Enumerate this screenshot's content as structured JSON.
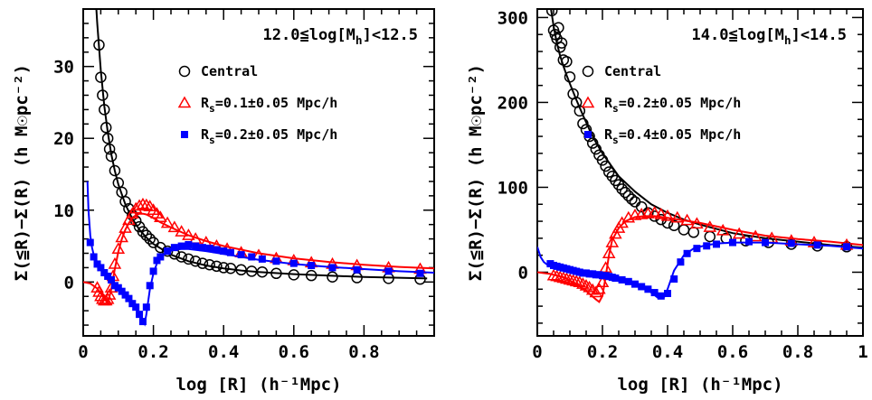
{
  "chart_data": [
    {
      "type": "scatter",
      "title": "12.0≦log[M_h]<12.5",
      "title_parts": {
        "pre": "12.0≦log[M",
        "sub": "h",
        "post": "]<12.5"
      },
      "xlabel": "log [R] (h⁻¹Mpc)",
      "ylabel": "Σ(≦R)−Σ(R) (h M☉pc⁻²)",
      "xlim": [
        0,
        1.0
      ],
      "ylim": [
        -7.5,
        38
      ],
      "xticks": [
        0,
        0.2,
        0.4,
        0.6,
        0.8
      ],
      "yticks": [
        0,
        10,
        20,
        30
      ],
      "legend_position": "top-right",
      "series": [
        {
          "name": "Central",
          "legend": {
            "pre": "Central",
            "sub": "",
            "post": ""
          },
          "marker": "circle",
          "color": "#000000",
          "points": {
            "x": [
              0.045,
              0.05,
              0.055,
              0.06,
              0.065,
              0.07,
              0.075,
              0.08,
              0.09,
              0.1,
              0.11,
              0.12,
              0.13,
              0.14,
              0.15,
              0.16,
              0.17,
              0.18,
              0.19,
              0.2,
              0.22,
              0.24,
              0.26,
              0.28,
              0.3,
              0.32,
              0.34,
              0.36,
              0.38,
              0.4,
              0.42,
              0.45,
              0.48,
              0.51,
              0.55,
              0.6,
              0.65,
              0.71,
              0.78,
              0.87,
              0.96
            ],
            "y": [
              33.0,
              28.5,
              26.0,
              24.0,
              21.5,
              20.0,
              18.5,
              17.5,
              15.5,
              13.8,
              12.5,
              11.2,
              10.2,
              9.3,
              8.5,
              7.7,
              7.0,
              6.5,
              6.0,
              5.5,
              4.8,
              4.3,
              3.9,
              3.5,
              3.2,
              2.9,
              2.6,
              2.4,
              2.2,
              2.0,
              1.9,
              1.7,
              1.5,
              1.4,
              1.2,
              1.0,
              0.9,
              0.7,
              0.6,
              0.5,
              0.4
            ]
          },
          "curve": {
            "x": [
              0.03,
              0.04,
              0.05,
              0.06,
              0.07,
              0.08,
              0.09,
              0.1,
              0.12,
              0.14,
              0.16,
              0.18,
              0.2,
              0.25,
              0.3,
              0.35,
              0.4,
              0.45,
              0.5,
              0.6,
              0.7,
              0.8,
              0.9,
              0.98
            ],
            "y": [
              44.0,
              36.0,
              29.5,
              24.5,
              20.8,
              17.8,
              15.5,
              13.6,
              10.8,
              8.8,
              7.3,
              6.2,
              5.3,
              3.8,
              2.9,
              2.3,
              1.9,
              1.6,
              1.4,
              1.1,
              0.9,
              0.7,
              0.6,
              0.5
            ]
          }
        },
        {
          "name": "R_s=0.1±0.05 Mpc/h",
          "legend": {
            "pre": "R",
            "sub": "s",
            "post": "=0.1±0.05 Mpc/h"
          },
          "marker": "triangle",
          "color": "#ff0000",
          "points": {
            "x": [
              0.04,
              0.045,
              0.05,
              0.055,
              0.06,
              0.065,
              0.07,
              0.075,
              0.08,
              0.085,
              0.09,
              0.1,
              0.11,
              0.12,
              0.13,
              0.14,
              0.15,
              0.16,
              0.17,
              0.18,
              0.19,
              0.2,
              0.21,
              0.22,
              0.24,
              0.26,
              0.28,
              0.3,
              0.32,
              0.35,
              0.38,
              0.41,
              0.45,
              0.5,
              0.55,
              0.6,
              0.65,
              0.71,
              0.78,
              0.87,
              0.96
            ],
            "y": [
              -0.8,
              -1.4,
              -2.0,
              -2.4,
              -2.6,
              -2.6,
              -2.4,
              -1.8,
              -0.8,
              0.8,
              2.5,
              4.6,
              6.2,
              7.5,
              8.6,
              9.5,
              10.2,
              10.6,
              10.8,
              10.7,
              10.5,
              10.0,
              9.5,
              9.0,
              8.2,
              7.6,
              7.0,
              6.5,
              6.0,
              5.5,
              5.0,
              4.6,
              4.1,
              3.7,
              3.3,
              3.0,
              2.7,
              2.5,
              2.3,
              2.0,
              1.8
            ]
          },
          "curve": {
            "x": [
              0.0,
              0.02,
              0.04,
              0.06,
              0.07,
              0.08,
              0.09,
              0.1,
              0.11,
              0.12,
              0.13,
              0.14,
              0.15,
              0.16,
              0.17,
              0.18,
              0.2,
              0.22,
              0.25,
              0.3,
              0.35,
              0.4,
              0.5,
              0.6,
              0.7,
              0.8,
              0.9,
              1.0
            ],
            "y": [
              0.0,
              -0.2,
              -0.9,
              -2.3,
              -3.0,
              -1.0,
              1.8,
              4.2,
              6.0,
              7.3,
              8.2,
              8.9,
              9.3,
              9.5,
              9.5,
              9.4,
              8.9,
              8.3,
              7.6,
              6.5,
              5.7,
              5.0,
              4.0,
              3.3,
              2.8,
              2.4,
              2.1,
              1.9
            ]
          }
        },
        {
          "name": "R_s=0.2±0.05 Mpc/h",
          "legend": {
            "pre": "R",
            "sub": "s",
            "post": "=0.2±0.05 Mpc/h"
          },
          "marker": "square",
          "color": "#0000ff",
          "points": {
            "x": [
              0.02,
              0.03,
              0.04,
              0.05,
              0.06,
              0.07,
              0.08,
              0.09,
              0.1,
              0.11,
              0.12,
              0.13,
              0.14,
              0.15,
              0.16,
              0.17,
              0.18,
              0.19,
              0.2,
              0.21,
              0.22,
              0.24,
              0.26,
              0.28,
              0.3,
              0.32,
              0.34,
              0.36,
              0.38,
              0.4,
              0.42,
              0.45,
              0.48,
              0.51,
              0.55,
              0.6,
              0.65,
              0.71,
              0.78,
              0.87,
              0.96
            ],
            "y": [
              5.5,
              3.5,
              2.5,
              2.0,
              1.3,
              0.8,
              0.3,
              -0.5,
              -0.8,
              -1.3,
              -1.8,
              -2.3,
              -3.0,
              -3.5,
              -4.5,
              -5.5,
              -3.5,
              -0.5,
              1.5,
              3.0,
              3.5,
              4.3,
              4.8,
              5.0,
              5.2,
              5.0,
              4.8,
              4.7,
              4.5,
              4.3,
              4.1,
              3.8,
              3.5,
              3.2,
              2.9,
              2.6,
              2.3,
              2.0,
              1.7,
              1.5,
              1.2
            ]
          },
          "curve": {
            "x": [
              0.012,
              0.015,
              0.02,
              0.025,
              0.03,
              0.04,
              0.05,
              0.06,
              0.08,
              0.1,
              0.12,
              0.14,
              0.15,
              0.16,
              0.17,
              0.175,
              0.18,
              0.19,
              0.2,
              0.21,
              0.22,
              0.24,
              0.26,
              0.28,
              0.3,
              0.35,
              0.4,
              0.5,
              0.6,
              0.7,
              0.8,
              0.9,
              1.0
            ],
            "y": [
              14.0,
              10.0,
              6.5,
              4.8,
              3.8,
              2.6,
              1.8,
              1.2,
              0.2,
              -0.8,
              -1.8,
              -2.9,
              -3.6,
              -4.4,
              -5.3,
              -5.8,
              -4.5,
              -1.0,
              1.2,
              2.6,
              3.4,
              4.2,
              4.5,
              4.6,
              4.6,
              4.3,
              3.9,
              3.1,
              2.5,
              2.1,
              1.8,
              1.5,
              1.3
            ]
          }
        }
      ]
    },
    {
      "type": "scatter",
      "title": "14.0≦log[M_h]<14.5",
      "title_parts": {
        "pre": "14.0≦log[M",
        "sub": "h",
        "post": "]<14.5"
      },
      "xlabel": "log [R] (h⁻¹Mpc)",
      "ylabel": "Σ(≦R)−Σ(R) (h M☉pc⁻²)",
      "xlim": [
        0,
        1.0
      ],
      "ylim": [
        -75,
        310
      ],
      "xticks": [
        0,
        0.2,
        0.4,
        0.6,
        0.8,
        1
      ],
      "yticks": [
        0,
        100,
        200,
        300
      ],
      "legend_position": "top-right",
      "series": [
        {
          "name": "Central",
          "legend": {
            "pre": "Central",
            "sub": "",
            "post": ""
          },
          "marker": "circle",
          "color": "#000000",
          "points": {
            "x": [
              0.045,
              0.05,
              0.055,
              0.06,
              0.065,
              0.07,
              0.075,
              0.08,
              0.09,
              0.1,
              0.11,
              0.12,
              0.13,
              0.14,
              0.15,
              0.16,
              0.17,
              0.18,
              0.19,
              0.2,
              0.21,
              0.22,
              0.23,
              0.24,
              0.25,
              0.26,
              0.27,
              0.28,
              0.29,
              0.3,
              0.32,
              0.34,
              0.36,
              0.38,
              0.4,
              0.42,
              0.45,
              0.48,
              0.53,
              0.58,
              0.64,
              0.71,
              0.78,
              0.86,
              0.95
            ],
            "y": [
              308,
              285,
              280,
              275,
              288,
              265,
              270,
              250,
              248,
              230,
              210,
              200,
              190,
              175,
              168,
              160,
              152,
              145,
              138,
              132,
              125,
              118,
              113,
              108,
              103,
              98,
              94,
              90,
              86,
              83,
              77,
              70,
              66,
              62,
              58,
              55,
              50,
              47,
              42,
              40,
              37,
              35,
              33,
              31,
              30
            ]
          },
          "curve": {
            "x": [
              0.03,
              0.04,
              0.05,
              0.06,
              0.07,
              0.08,
              0.09,
              0.1,
              0.12,
              0.14,
              0.16,
              0.18,
              0.2,
              0.25,
              0.3,
              0.35,
              0.4,
              0.45,
              0.5,
              0.6,
              0.7,
              0.8,
              0.9,
              1.0
            ],
            "y": [
              350,
              315,
              290,
              270,
              255,
              243,
              232,
              222,
              203,
              185,
              168,
              153,
              140,
              113,
              95,
              80,
              70,
              62,
              56,
              46,
              40,
              36,
              32,
              29
            ]
          }
        },
        {
          "name": "R_s=0.2±0.05 Mpc/h",
          "legend": {
            "pre": "R",
            "sub": "s",
            "post": "=0.2±0.05 Mpc/h"
          },
          "marker": "triangle",
          "color": "#ff0000",
          "points": {
            "x": [
              0.05,
              0.06,
              0.07,
              0.08,
              0.09,
              0.1,
              0.11,
              0.12,
              0.13,
              0.14,
              0.15,
              0.16,
              0.17,
              0.18,
              0.19,
              0.2,
              0.21,
              0.22,
              0.23,
              0.24,
              0.25,
              0.26,
              0.28,
              0.3,
              0.32,
              0.34,
              0.36,
              0.38,
              0.4,
              0.43,
              0.46,
              0.49,
              0.53,
              0.57,
              0.62,
              0.67,
              0.72,
              0.78,
              0.85,
              0.95
            ],
            "y": [
              -4,
              -5,
              -6,
              -7,
              -8,
              -9,
              -10,
              -11,
              -12,
              -14,
              -16,
              -18,
              -21,
              -24,
              -20,
              -12,
              5,
              22,
              35,
              45,
              52,
              58,
              64,
              67,
              68,
              69,
              70,
              68,
              66,
              64,
              61,
              57,
              53,
              49,
              45,
              42,
              40,
              37,
              35,
              32
            ]
          },
          "curve": {
            "x": [
              0.0,
              0.04,
              0.08,
              0.12,
              0.15,
              0.18,
              0.19,
              0.2,
              0.21,
              0.22,
              0.23,
              0.25,
              0.27,
              0.3,
              0.33,
              0.36,
              0.4,
              0.45,
              0.5,
              0.6,
              0.7,
              0.8,
              0.9,
              1.0
            ],
            "y": [
              0,
              -2,
              -6,
              -14,
              -22,
              -32,
              -35,
              -28,
              -5,
              20,
              38,
              52,
              60,
              65,
              66,
              66,
              64,
              61,
              58,
              50,
              43,
              39,
              36,
              32
            ]
          }
        },
        {
          "name": "R_s=0.4±0.05 Mpc/h",
          "legend": {
            "pre": "R",
            "sub": "s",
            "post": "=0.4±0.05 Mpc/h"
          },
          "marker": "square",
          "color": "#0000ff",
          "points": {
            "x": [
              0.04,
              0.05,
              0.06,
              0.07,
              0.08,
              0.09,
              0.1,
              0.11,
              0.12,
              0.13,
              0.14,
              0.15,
              0.16,
              0.17,
              0.18,
              0.19,
              0.2,
              0.21,
              0.22,
              0.23,
              0.24,
              0.26,
              0.28,
              0.3,
              0.32,
              0.34,
              0.36,
              0.38,
              0.4,
              0.42,
              0.44,
              0.46,
              0.49,
              0.52,
              0.55,
              0.6,
              0.65,
              0.7,
              0.78,
              0.86,
              0.95
            ],
            "y": [
              10,
              8,
              7,
              6,
              5,
              4,
              3,
              2,
              1,
              0,
              -1,
              -1,
              -2,
              -2,
              -3,
              -3,
              -4,
              -4,
              -5,
              -6,
              -7,
              -9,
              -11,
              -14,
              -17,
              -20,
              -24,
              -28,
              -25,
              -8,
              12,
              22,
              28,
              31,
              33,
              35,
              36,
              35,
              34,
              32,
              30
            ]
          },
          "curve": {
            "x": [
              0.0,
              0.01,
              0.02,
              0.03,
              0.05,
              0.1,
              0.15,
              0.2,
              0.25,
              0.3,
              0.32,
              0.34,
              0.36,
              0.37,
              0.38,
              0.39,
              0.4,
              0.42,
              0.45,
              0.48,
              0.52,
              0.56,
              0.6,
              0.7,
              0.8,
              0.9,
              1.0
            ],
            "y": [
              30,
              18,
              12,
              9,
              6,
              3,
              0,
              -4,
              -8,
              -14,
              -17,
              -21,
              -27,
              -30,
              -31,
              -29,
              -20,
              2,
              20,
              28,
              32,
              34,
              35,
              35,
              33,
              31,
              28
            ]
          }
        }
      ]
    }
  ]
}
